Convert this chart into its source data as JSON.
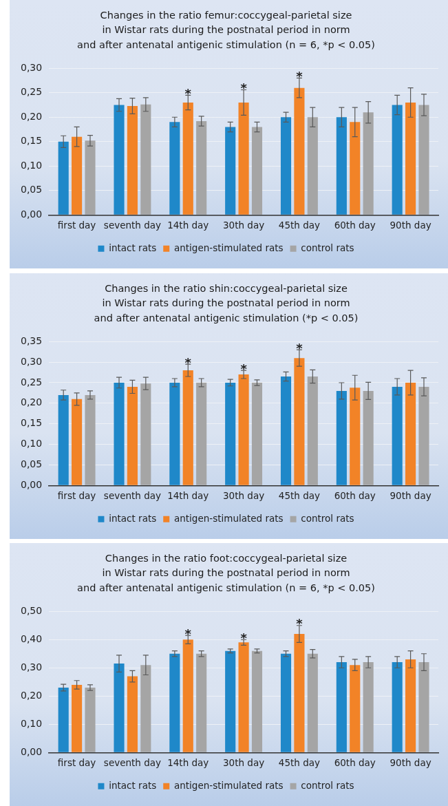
{
  "chart_data": [
    {
      "type": "bar",
      "title": "Changes in the ratio femur:coccygeal-parietal size\nin Wistar rats during the postnatal period in norm\nand after antenatal antigenic stimulation (n = 6, *p < 0.05)",
      "categories": [
        "first day",
        "seventh day",
        "14th day",
        "30th day",
        "45th day",
        "60th day",
        "90th day"
      ],
      "series": [
        {
          "name": "intact rats",
          "color": "#1f88c9",
          "values": [
            0.15,
            0.225,
            0.19,
            0.18,
            0.2,
            0.2,
            0.225
          ],
          "errors": [
            0.012,
            0.013,
            0.01,
            0.01,
            0.01,
            0.02,
            0.02
          ]
        },
        {
          "name": "antigen-stimulated rats",
          "color": "#f28327",
          "values": [
            0.16,
            0.223,
            0.23,
            0.23,
            0.26,
            0.19,
            0.23
          ],
          "errors": [
            0.02,
            0.016,
            0.015,
            0.026,
            0.02,
            0.03,
            0.03
          ]
        },
        {
          "name": "control rats",
          "color": "#a5a5a5",
          "values": [
            0.152,
            0.226,
            0.192,
            0.18,
            0.2,
            0.21,
            0.225
          ],
          "errors": [
            0.011,
            0.014,
            0.01,
            0.01,
            0.02,
            0.022,
            0.022
          ]
        }
      ],
      "ylim": [
        0,
        0.3
      ],
      "yticks": [
        {
          "value": 0,
          "label": "0,00"
        },
        {
          "value": 0.05,
          "label": "0,05"
        },
        {
          "value": 0.1,
          "label": "0,10"
        },
        {
          "value": 0.15,
          "label": "0,15"
        },
        {
          "value": 0.2,
          "label": "0,20"
        },
        {
          "value": 0.25,
          "label": "0,25"
        },
        {
          "value": 0.3,
          "label": "0,30"
        }
      ],
      "annotations": [
        {
          "text": "*",
          "x": "14th day",
          "y": 0.245
        },
        {
          "text": "*",
          "x": "30th day",
          "y": 0.256
        },
        {
          "text": "*",
          "x": "45th day",
          "y": 0.28
        }
      ],
      "grid": "y",
      "legend": "bottom"
    },
    {
      "type": "bar",
      "title": "Changes in the ratio shin:coccygeal-parietal size\nin Wistar rats during the postnatal period in norm\nand after antenatal antigenic stimulation (*p < 0.05)",
      "categories": [
        "first day",
        "seventh day",
        "14th day",
        "30th day",
        "45th day",
        "60th day",
        "90th day"
      ],
      "series": [
        {
          "name": "intact rats",
          "color": "#1f88c9",
          "values": [
            0.22,
            0.25,
            0.25,
            0.25,
            0.265,
            0.23,
            0.24
          ],
          "errors": [
            0.012,
            0.013,
            0.01,
            0.008,
            0.011,
            0.02,
            0.02
          ]
        },
        {
          "name": "antigen-stimulated rats",
          "color": "#f28327",
          "values": [
            0.21,
            0.24,
            0.28,
            0.27,
            0.31,
            0.238,
            0.25
          ],
          "errors": [
            0.015,
            0.016,
            0.015,
            0.01,
            0.02,
            0.03,
            0.03
          ]
        },
        {
          "name": "control rats",
          "color": "#a5a5a5",
          "values": [
            0.22,
            0.248,
            0.25,
            0.25,
            0.265,
            0.23,
            0.24
          ],
          "errors": [
            0.01,
            0.015,
            0.01,
            0.007,
            0.016,
            0.021,
            0.022
          ]
        }
      ],
      "ylim": [
        0,
        0.35
      ],
      "yticks": [
        {
          "value": 0,
          "label": "0,00"
        },
        {
          "value": 0.05,
          "label": "0,05"
        },
        {
          "value": 0.1,
          "label": "0,10"
        },
        {
          "value": 0.15,
          "label": "0,15"
        },
        {
          "value": 0.2,
          "label": "0,20"
        },
        {
          "value": 0.25,
          "label": "0,25"
        },
        {
          "value": 0.3,
          "label": "0,30"
        },
        {
          "value": 0.35,
          "label": "0,35"
        }
      ],
      "annotations": [
        {
          "text": "*",
          "x": "14th day",
          "y": 0.295
        },
        {
          "text": "*",
          "x": "30th day",
          "y": 0.28
        },
        {
          "text": "*",
          "x": "45th day",
          "y": 0.33
        }
      ],
      "grid": "y",
      "legend": "bottom"
    },
    {
      "type": "bar",
      "title": "Changes in the ratio foot:coccygeal-parietal size\nin Wistar rats during the postnatal period in norm\nand after antenatal antigenic stimulation (n = 6, *p < 0.05)",
      "categories": [
        "first day",
        "seventh day",
        "14th day",
        "30th day",
        "45th day",
        "60th day",
        "90th day"
      ],
      "series": [
        {
          "name": "intact rats",
          "color": "#1f88c9",
          "values": [
            0.23,
            0.315,
            0.35,
            0.36,
            0.35,
            0.32,
            0.32
          ],
          "errors": [
            0.012,
            0.03,
            0.01,
            0.007,
            0.01,
            0.02,
            0.02
          ]
        },
        {
          "name": "antigen-stimulated rats",
          "color": "#f28327",
          "values": [
            0.24,
            0.27,
            0.4,
            0.39,
            0.42,
            0.31,
            0.33
          ],
          "errors": [
            0.015,
            0.02,
            0.015,
            0.01,
            0.03,
            0.02,
            0.03
          ]
        },
        {
          "name": "control rats",
          "color": "#a5a5a5",
          "values": [
            0.23,
            0.31,
            0.35,
            0.36,
            0.35,
            0.32,
            0.32
          ],
          "errors": [
            0.01,
            0.035,
            0.01,
            0.007,
            0.015,
            0.02,
            0.03
          ]
        }
      ],
      "ylim": [
        0,
        0.5
      ],
      "yticks": [
        {
          "value": 0,
          "label": "0,00"
        },
        {
          "value": 0.1,
          "label": "0,10"
        },
        {
          "value": 0.2,
          "label": "0,20"
        },
        {
          "value": 0.3,
          "label": "0,30"
        },
        {
          "value": 0.4,
          "label": "0,40"
        },
        {
          "value": 0.5,
          "label": "0,50"
        }
      ],
      "annotations": [
        {
          "text": "*",
          "x": "14th day",
          "y": 0.415
        },
        {
          "text": "*",
          "x": "30th day",
          "y": 0.4
        },
        {
          "text": "*",
          "x": "45th day",
          "y": 0.45
        }
      ],
      "grid": "y",
      "legend": "bottom"
    }
  ]
}
